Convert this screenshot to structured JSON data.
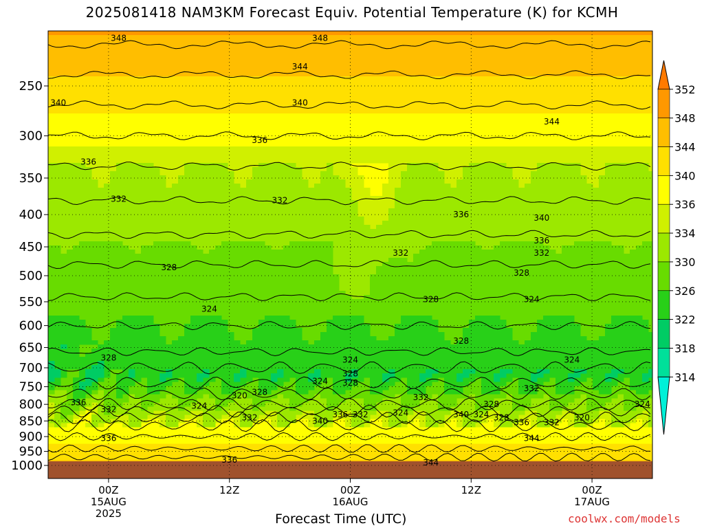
{
  "chart_data": {
    "type": "heatmap",
    "title": "2025081418 NAM3KM Forecast Equiv. Potential Temperature (K) for KCMH",
    "xlabel": "Forecast Time (UTC)",
    "ylabel": "",
    "y_scale": "log-pressure",
    "y_inverted": true,
    "y_ticks": [
      250,
      300,
      350,
      400,
      450,
      500,
      550,
      600,
      650,
      700,
      750,
      800,
      850,
      900,
      950,
      1000
    ],
    "x_ticks": [
      {
        "hour": 6,
        "lines": [
          "00Z",
          "15AUG",
          "2025"
        ]
      },
      {
        "hour": 18,
        "lines": [
          "12Z"
        ]
      },
      {
        "hour": 30,
        "lines": [
          "00Z",
          "16AUG"
        ]
      },
      {
        "hour": 42,
        "lines": [
          "12Z"
        ]
      },
      {
        "hour": 54,
        "lines": [
          "00Z",
          "17AUG"
        ]
      }
    ],
    "xlim_hours": [
      0,
      60
    ],
    "colorbar_levels": [
      314,
      318,
      322,
      326,
      330,
      334,
      336,
      340,
      344,
      348,
      352
    ],
    "colorbar_colors": [
      "#00f0d8",
      "#00e09a",
      "#00cc64",
      "#28d018",
      "#68dc00",
      "#9ce800",
      "#d0f000",
      "#ffff00",
      "#ffe000",
      "#ffbe00",
      "#ff9800",
      "#ff7a00"
    ],
    "ground_color": "#a0522d",
    "contour_labels": [
      {
        "hour": 7,
        "p": 210,
        "value": 348
      },
      {
        "hour": 27,
        "p": 210,
        "value": 348
      },
      {
        "hour": 25,
        "p": 233,
        "value": 344
      },
      {
        "hour": 1,
        "p": 266,
        "value": 340
      },
      {
        "hour": 25,
        "p": 266,
        "value": 340
      },
      {
        "hour": 50,
        "p": 285,
        "value": 344
      },
      {
        "hour": 21,
        "p": 305,
        "value": 336
      },
      {
        "hour": 4,
        "p": 330,
        "value": 336
      },
      {
        "hour": 7,
        "p": 378,
        "value": 332
      },
      {
        "hour": 23,
        "p": 380,
        "value": 332
      },
      {
        "hour": 41,
        "p": 400,
        "value": 336
      },
      {
        "hour": 49,
        "p": 405,
        "value": 340
      },
      {
        "hour": 49,
        "p": 440,
        "value": 336
      },
      {
        "hour": 35,
        "p": 460,
        "value": 332
      },
      {
        "hour": 49,
        "p": 460,
        "value": 332
      },
      {
        "hour": 12,
        "p": 485,
        "value": 328
      },
      {
        "hour": 47,
        "p": 495,
        "value": 328
      },
      {
        "hour": 16,
        "p": 565,
        "value": 324
      },
      {
        "hour": 38,
        "p": 545,
        "value": 328
      },
      {
        "hour": 48,
        "p": 545,
        "value": 324
      },
      {
        "hour": 41,
        "p": 635,
        "value": 328
      },
      {
        "hour": 6,
        "p": 675,
        "value": 328
      },
      {
        "hour": 30,
        "p": 680,
        "value": 324
      },
      {
        "hour": 52,
        "p": 680,
        "value": 324
      },
      {
        "hour": 30,
        "p": 715,
        "value": 328
      },
      {
        "hour": 27,
        "p": 735,
        "value": 324
      },
      {
        "hour": 30,
        "p": 740,
        "value": 328
      },
      {
        "hour": 21,
        "p": 765,
        "value": 328
      },
      {
        "hour": 19,
        "p": 775,
        "value": 320
      },
      {
        "hour": 48,
        "p": 755,
        "value": 332
      },
      {
        "hour": 37,
        "p": 780,
        "value": 332
      },
      {
        "hour": 3,
        "p": 795,
        "value": 336
      },
      {
        "hour": 15,
        "p": 805,
        "value": 324
      },
      {
        "hour": 44,
        "p": 800,
        "value": 328
      },
      {
        "hour": 6,
        "p": 815,
        "value": 332
      },
      {
        "hour": 35,
        "p": 825,
        "value": 324
      },
      {
        "hour": 59,
        "p": 800,
        "value": 324
      },
      {
        "hour": 29,
        "p": 830,
        "value": 336
      },
      {
        "hour": 31,
        "p": 830,
        "value": 332
      },
      {
        "hour": 20,
        "p": 840,
        "value": 332
      },
      {
        "hour": 41,
        "p": 830,
        "value": 340
      },
      {
        "hour": 43,
        "p": 830,
        "value": 324
      },
      {
        "hour": 45,
        "p": 840,
        "value": 328
      },
      {
        "hour": 53,
        "p": 840,
        "value": 320
      },
      {
        "hour": 27,
        "p": 850,
        "value": 340
      },
      {
        "hour": 47,
        "p": 855,
        "value": 336
      },
      {
        "hour": 50,
        "p": 855,
        "value": 332
      },
      {
        "hour": 6,
        "p": 905,
        "value": 336
      },
      {
        "hour": 48,
        "p": 905,
        "value": 344
      },
      {
        "hour": 18,
        "p": 980,
        "value": 336
      },
      {
        "hour": 38,
        "p": 990,
        "value": 344
      }
    ]
  },
  "footer": {
    "credit": "coolwx.com/models"
  }
}
